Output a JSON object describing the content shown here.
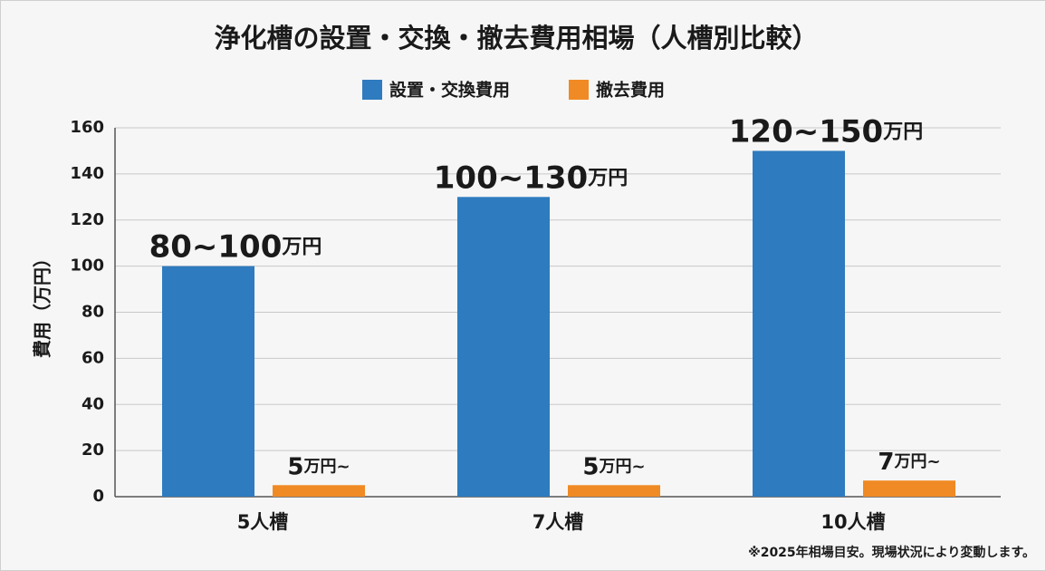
{
  "chart_data": {
    "type": "bar",
    "title": "浄化槽の設置・交換・撤去費用相場（人槽別比較）",
    "y_label": "費用（万円）",
    "note": "※2025年相場目安。現場状況により変動します。",
    "categories": [
      "5人槽",
      "7人槽",
      "10人槽"
    ],
    "series": [
      {
        "name": "設置・交換費用",
        "color": "#2e7bbf",
        "values": [
          100,
          130,
          150
        ],
        "value_labels": [
          "80~100万円",
          "100~130万円",
          "120~150万円"
        ]
      },
      {
        "name": "撤去費用",
        "color": "#f08a24",
        "values": [
          5,
          5,
          7
        ],
        "value_labels": [
          "5万円~",
          "5万円~",
          "7万円~"
        ]
      }
    ],
    "ylim": [
      0,
      160
    ],
    "yticks": [
      0,
      20,
      40,
      60,
      80,
      100,
      120,
      140,
      160
    ],
    "grid": true
  }
}
